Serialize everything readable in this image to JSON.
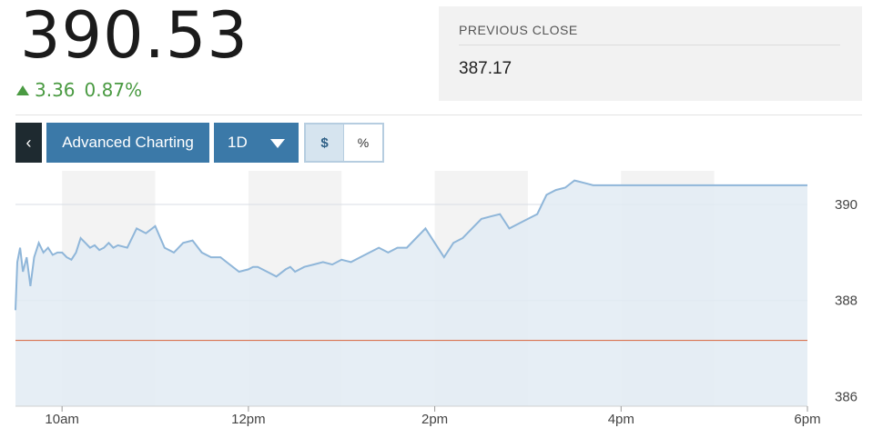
{
  "quote": {
    "price": "390.53",
    "change": "3.36",
    "change_percent": "0.87%",
    "direction": "up",
    "previous_close_label": "PREVIOUS CLOSE",
    "previous_close": "387.17"
  },
  "toolbar": {
    "back_icon": "‹",
    "advanced_label": "Advanced Charting",
    "range_label": "1D",
    "dollar_label": "$",
    "percent_label": "%"
  },
  "colors": {
    "up": "#4a9a42",
    "line": "#8fb6d9",
    "area": "#e2ebf3",
    "previous_close_line": "#d9734f",
    "button": "#3b79a8"
  },
  "chart_data": {
    "type": "area",
    "x_ticks": [
      "10am",
      "12pm",
      "2pm",
      "4pm",
      "6pm"
    ],
    "y_ticks": [
      386,
      388,
      390
    ],
    "ylim": [
      385.8,
      390.7
    ],
    "previous_close": 387.17,
    "x_range_hours": [
      9.5,
      18.0
    ],
    "series": [
      {
        "x": [
          9.5,
          9.52,
          9.55,
          9.58,
          9.62,
          9.66,
          9.7,
          9.75,
          9.8,
          9.85,
          9.9,
          9.95,
          10.0,
          10.05,
          10.1,
          10.15,
          10.2,
          10.25,
          10.3,
          10.35,
          10.4,
          10.45,
          10.5,
          10.55,
          10.6,
          10.7,
          10.8,
          10.9,
          11.0,
          11.1,
          11.2,
          11.3,
          11.4,
          11.5,
          11.6,
          11.7,
          11.8,
          11.9,
          12.0,
          12.05,
          12.1,
          12.2,
          12.3,
          12.4,
          12.45,
          12.5,
          12.6,
          12.7,
          12.8,
          12.9,
          13.0,
          13.1,
          13.2,
          13.3,
          13.4,
          13.5,
          13.6,
          13.7,
          13.8,
          13.9,
          14.0,
          14.1,
          14.2,
          14.3,
          14.4,
          14.5,
          14.6,
          14.7,
          14.8,
          14.9,
          15.0,
          15.1,
          15.2,
          15.3,
          15.4,
          15.5,
          15.6,
          15.7,
          15.75,
          15.8,
          15.85,
          15.9,
          15.95,
          16.0,
          16.1,
          16.2,
          16.3,
          16.4,
          16.5,
          16.6,
          16.7,
          16.8,
          16.9,
          17.0,
          17.1,
          17.2,
          17.3,
          17.4,
          17.5,
          18.0
        ],
        "y": [
          387.8,
          388.8,
          389.1,
          388.6,
          388.9,
          388.3,
          388.9,
          389.2,
          389.0,
          389.1,
          388.95,
          389.0,
          389.0,
          388.9,
          388.85,
          389.0,
          389.3,
          389.2,
          389.1,
          389.15,
          389.05,
          389.1,
          389.2,
          389.1,
          389.15,
          389.1,
          389.5,
          389.4,
          389.55,
          389.1,
          389.0,
          389.2,
          389.25,
          389.0,
          388.9,
          388.9,
          388.75,
          388.6,
          388.65,
          388.7,
          388.7,
          388.6,
          388.5,
          388.65,
          388.7,
          388.6,
          388.7,
          388.75,
          388.8,
          388.75,
          388.85,
          388.8,
          388.9,
          389.0,
          389.1,
          389.0,
          389.1,
          389.1,
          389.3,
          389.5,
          389.2,
          388.9,
          389.2,
          389.3,
          389.5,
          389.7,
          389.75,
          389.8,
          389.5,
          389.6,
          389.7,
          389.8,
          390.2,
          390.3,
          390.35,
          390.5,
          390.45,
          390.4,
          390.4,
          390.4,
          390.4,
          390.4,
          390.4,
          390.4,
          390.4,
          390.4,
          390.4,
          390.4,
          390.4,
          390.4,
          390.4,
          390.4,
          390.4,
          390.4,
          390.4,
          390.4,
          390.4,
          390.4,
          390.4,
          390.4
        ]
      }
    ]
  }
}
